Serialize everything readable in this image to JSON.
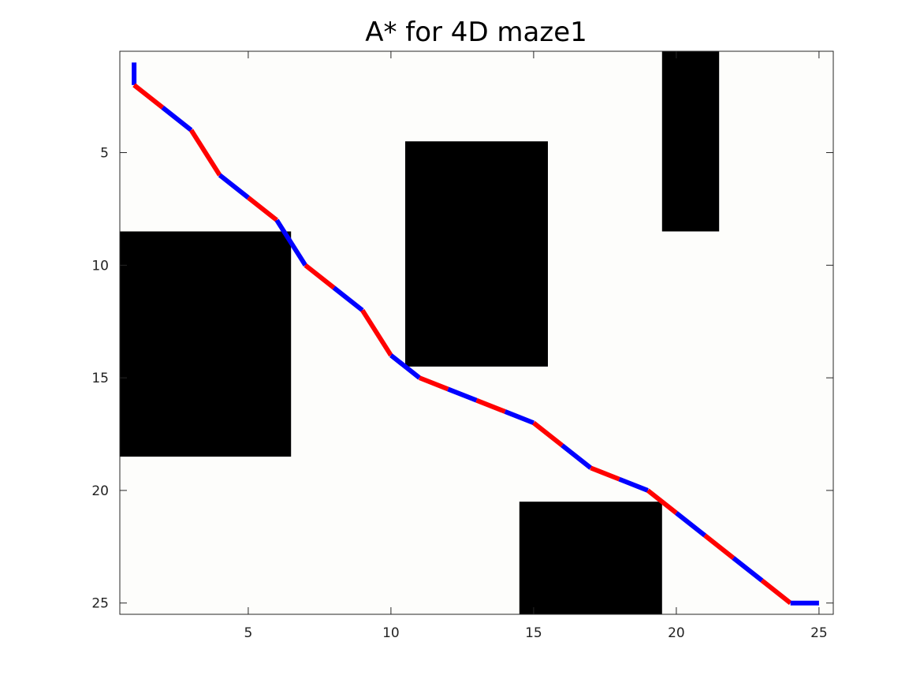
{
  "chart_data": {
    "type": "line",
    "title": "A* for 4D maze1",
    "xlabel": "",
    "ylabel": "",
    "xlim": [
      0.5,
      25.5
    ],
    "ylim": [
      0.5,
      25.5
    ],
    "y_reversed": true,
    "grid": false,
    "xticks": [
      5,
      10,
      15,
      20,
      25
    ],
    "yticks": [
      5,
      10,
      15,
      20,
      25
    ],
    "xtick_labels": [
      "5",
      "10",
      "15",
      "20",
      "25"
    ],
    "ytick_labels": [
      "5",
      "10",
      "15",
      "20",
      "25"
    ],
    "background_color": "#fdfdfb",
    "obstacle_color": "#000000",
    "obstacles": [
      {
        "x": [
          1,
          6
        ],
        "y": [
          9,
          18
        ]
      },
      {
        "x": [
          11,
          15
        ],
        "y": [
          5,
          14
        ]
      },
      {
        "x": [
          20,
          21
        ],
        "y": [
          1,
          8
        ]
      },
      {
        "x": [
          15,
          19
        ],
        "y": [
          21,
          25
        ]
      }
    ],
    "path": {
      "x": [
        1,
        1,
        2,
        3,
        4,
        5,
        6,
        7,
        8,
        9,
        10,
        11,
        12,
        13,
        14,
        15,
        16,
        17,
        18,
        19,
        20,
        21,
        22,
        23,
        24,
        25
      ],
      "y": [
        1,
        2,
        3,
        4,
        6,
        7,
        8,
        10,
        11,
        12,
        14,
        15,
        15.5,
        16,
        16.5,
        17,
        18,
        19,
        19.5,
        20,
        21,
        22,
        23,
        24,
        25,
        25
      ],
      "segment_colors": [
        "#0000ff",
        "#ff0000"
      ]
    }
  }
}
